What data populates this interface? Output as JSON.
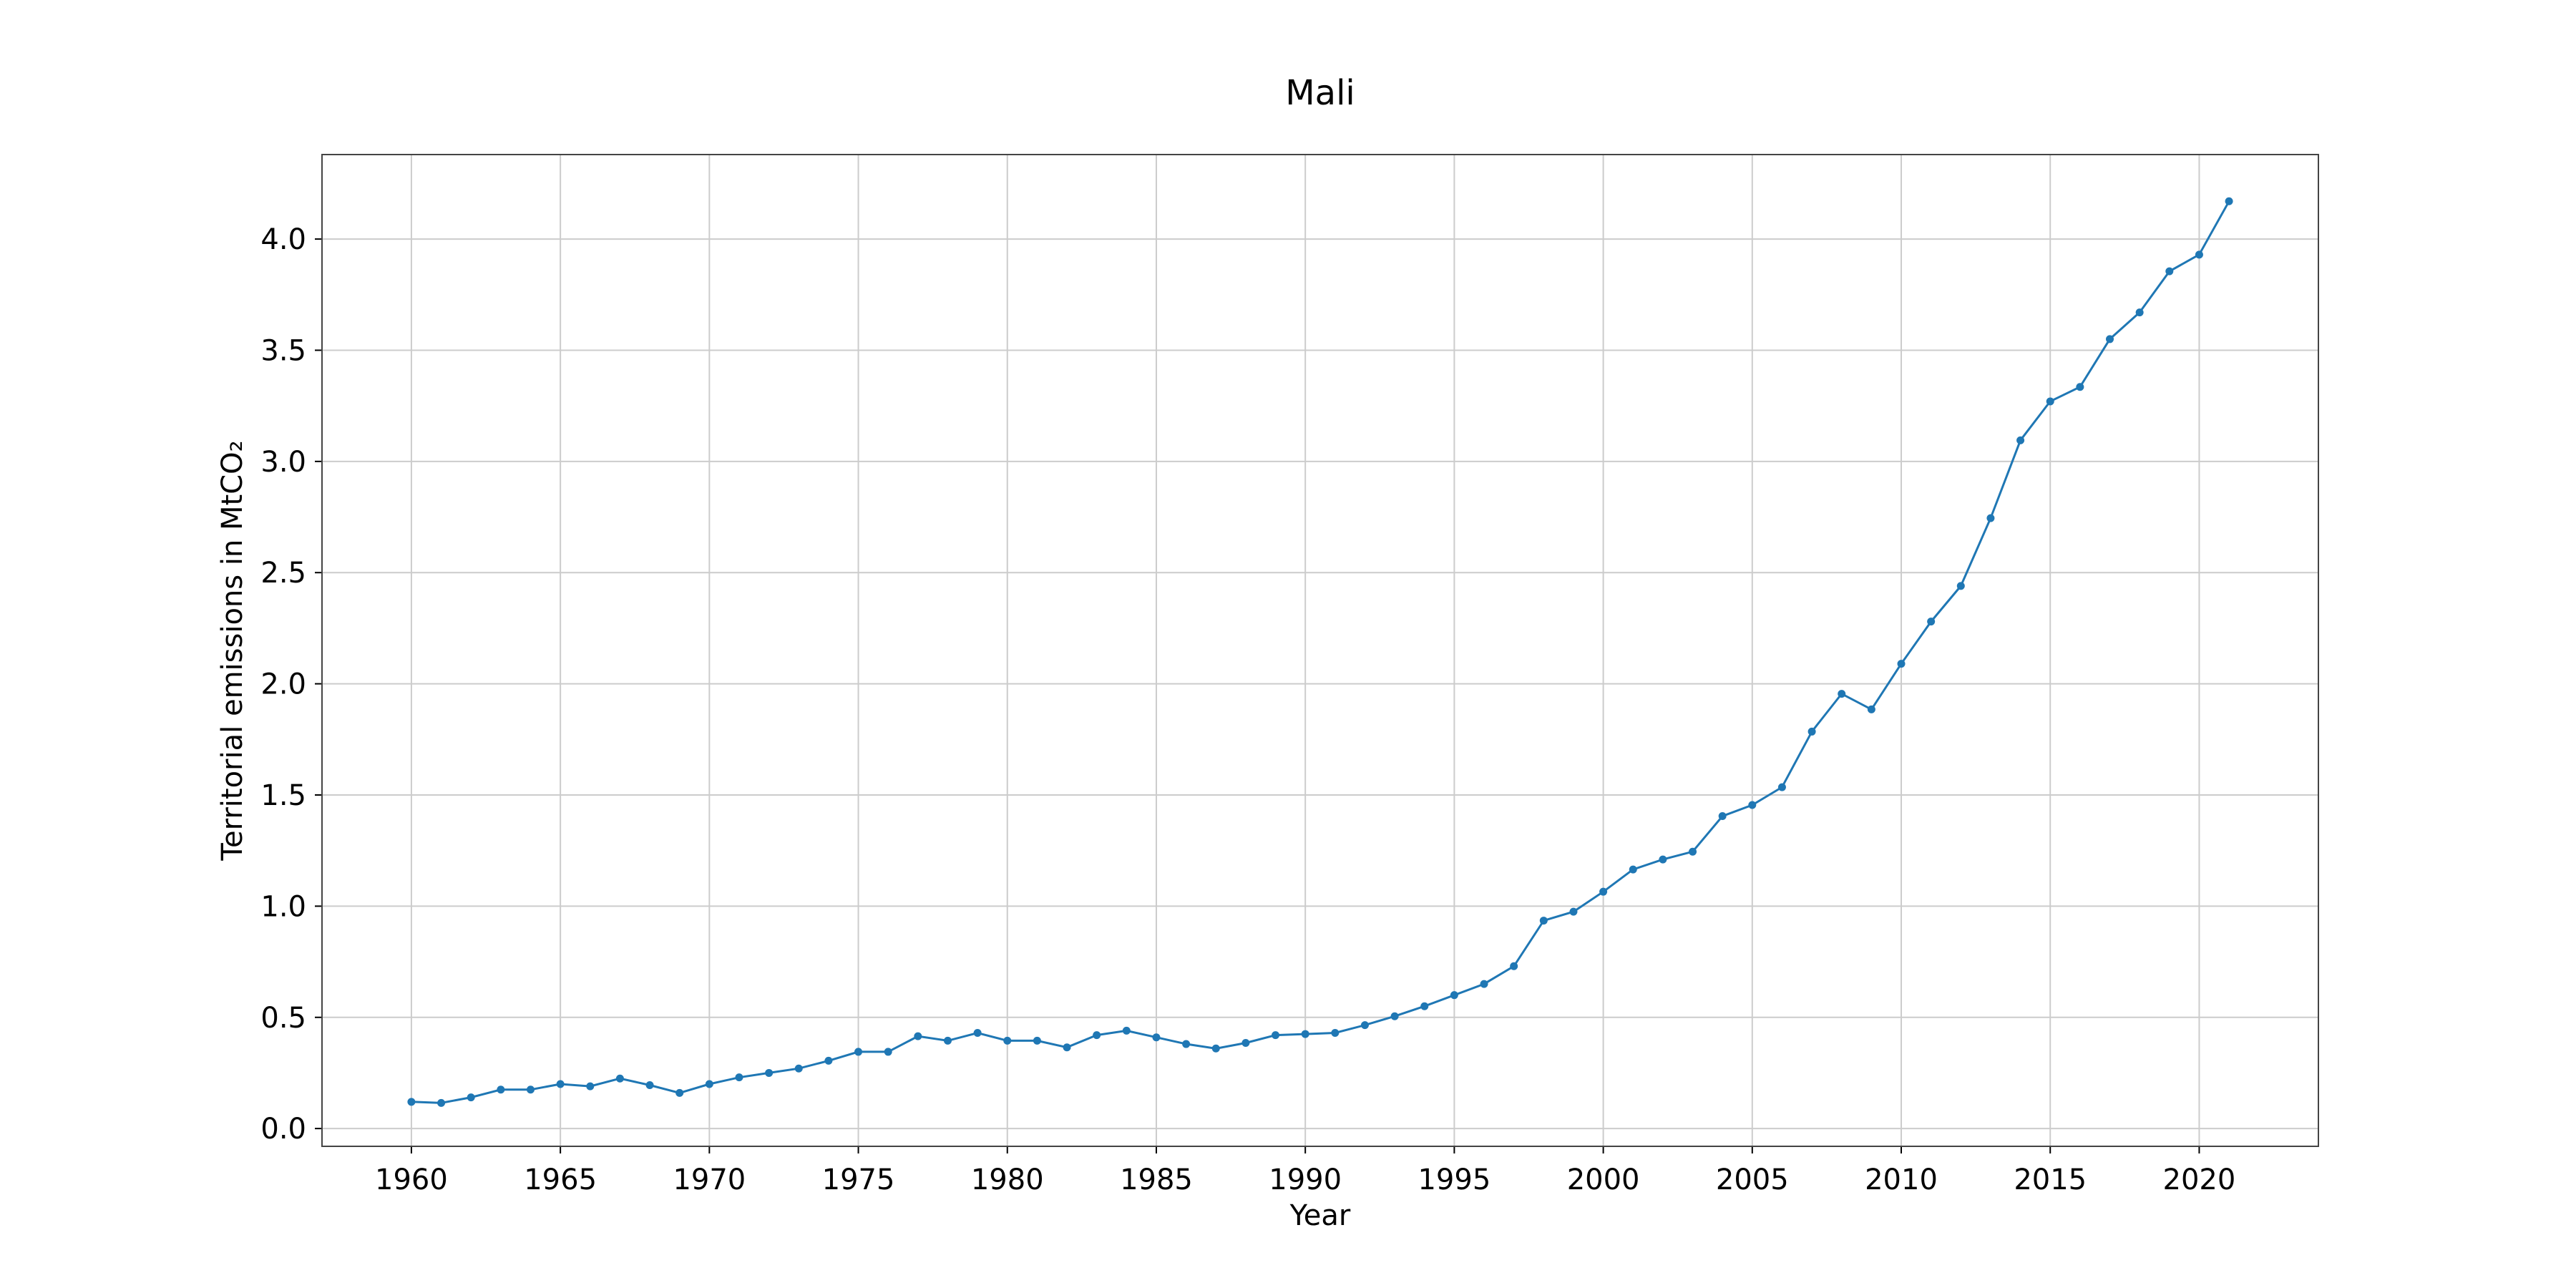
{
  "chart_data": {
    "type": "line",
    "title": "Mali",
    "xlabel": "Year",
    "ylabel": "Territorial emissions in MtCO₂",
    "xlim": [
      1957,
      2024
    ],
    "ylim": [
      -0.08,
      4.38
    ],
    "xticks": [
      1960,
      1965,
      1970,
      1975,
      1980,
      1985,
      1990,
      1995,
      2000,
      2005,
      2010,
      2015,
      2020
    ],
    "yticks": [
      0.0,
      0.5,
      1.0,
      1.5,
      2.0,
      2.5,
      3.0,
      3.5,
      4.0
    ],
    "grid": true,
    "color": "#1f77b4",
    "x": [
      1960,
      1961,
      1962,
      1963,
      1964,
      1965,
      1966,
      1967,
      1968,
      1969,
      1970,
      1971,
      1972,
      1973,
      1974,
      1975,
      1976,
      1977,
      1978,
      1979,
      1980,
      1981,
      1982,
      1983,
      1984,
      1985,
      1986,
      1987,
      1988,
      1989,
      1990,
      1991,
      1992,
      1993,
      1994,
      1995,
      1996,
      1997,
      1998,
      1999,
      2000,
      2001,
      2002,
      2003,
      2004,
      2005,
      2006,
      2007,
      2008,
      2009,
      2010,
      2011,
      2012,
      2013,
      2014,
      2015,
      2016,
      2017,
      2018,
      2019,
      2020,
      2021
    ],
    "y": [
      0.12,
      0.115,
      0.14,
      0.175,
      0.175,
      0.2,
      0.19,
      0.225,
      0.195,
      0.16,
      0.2,
      0.23,
      0.25,
      0.27,
      0.305,
      0.345,
      0.345,
      0.415,
      0.395,
      0.43,
      0.395,
      0.395,
      0.365,
      0.42,
      0.44,
      0.41,
      0.38,
      0.36,
      0.385,
      0.42,
      0.425,
      0.43,
      0.465,
      0.505,
      0.55,
      0.6,
      0.65,
      0.73,
      0.935,
      0.975,
      1.065,
      1.165,
      1.21,
      1.245,
      1.405,
      1.455,
      1.535,
      1.785,
      1.955,
      1.885,
      2.09,
      2.28,
      2.44,
      2.745,
      3.095,
      3.27,
      3.335,
      3.55,
      3.67,
      3.855,
      3.93,
      4.17
    ]
  }
}
